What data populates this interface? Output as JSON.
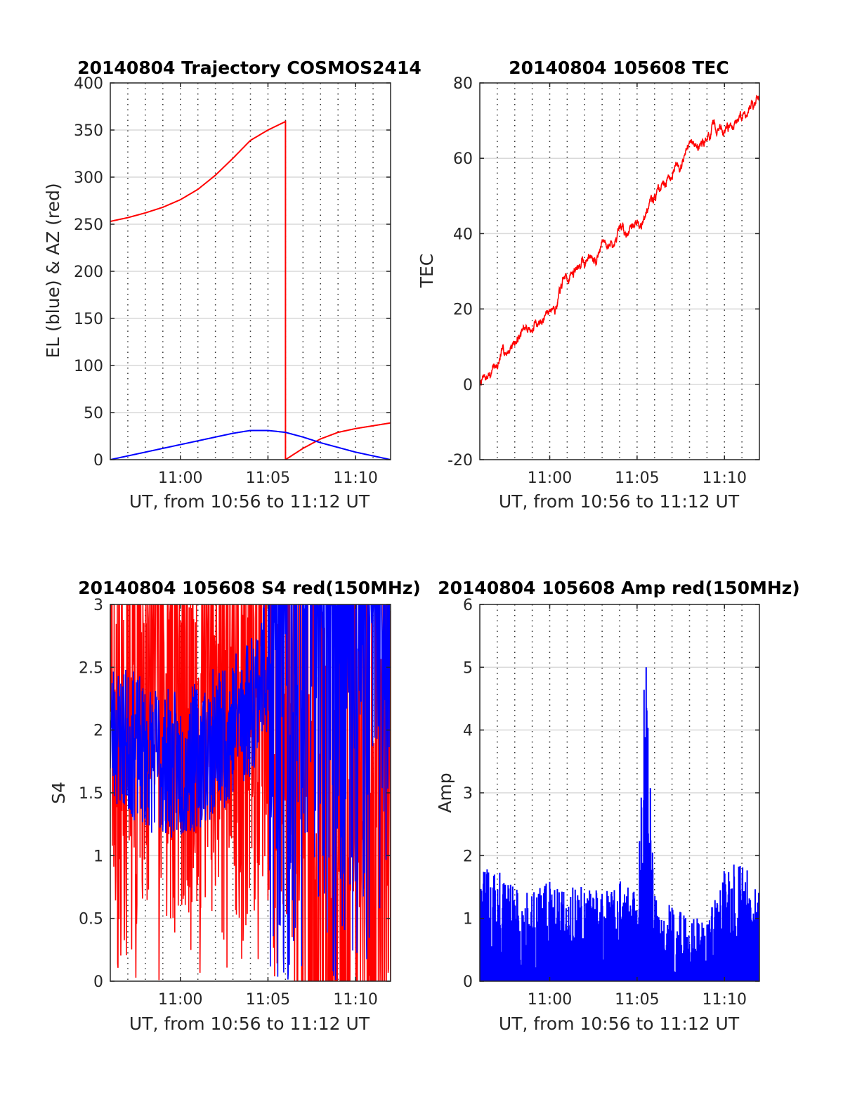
{
  "figure": {
    "colors": {
      "red": "#ff0000",
      "blue": "#0000ff",
      "axis": "#262626",
      "grid": "#262626"
    }
  },
  "chart_data": [
    {
      "id": "trajectory",
      "type": "line",
      "title": "20140804 Trajectory COSMOS2414",
      "xlabel": "UT, from 10:56 to 11:12 UT",
      "ylabel": "EL (blue) & AZ (red)",
      "xlim": [
        "10:56",
        "11:12"
      ],
      "ylim": [
        0,
        400
      ],
      "yticks": [
        0,
        50,
        100,
        150,
        200,
        250,
        300,
        350,
        400
      ],
      "xticks": [
        "11:00",
        "11:05",
        "11:10"
      ],
      "grid": true,
      "series": [
        {
          "color": "#ff0000",
          "x": [
            "10:56",
            "10:57",
            "10:58",
            "10:59",
            "11:00",
            "11:01",
            "11:02",
            "11:03",
            "11:04",
            "11:05",
            "11:06"
          ],
          "values": [
            253,
            257,
            262,
            268,
            276,
            287,
            302,
            320,
            339,
            350,
            359
          ]
        },
        {
          "color": "#ff0000",
          "x": [
            "11:06",
            "11:07",
            "11:08",
            "11:09",
            "11:10",
            "11:11",
            "11:12"
          ],
          "values": [
            0,
            12,
            22,
            29,
            33,
            36,
            39
          ]
        },
        {
          "color": "#0000ff",
          "x": [
            "10:56",
            "10:57",
            "10:58",
            "10:59",
            "11:00",
            "11:01",
            "11:02",
            "11:03",
            "11:04",
            "11:05",
            "11:06",
            "11:07",
            "11:08",
            "11:09",
            "11:10",
            "11:11",
            "11:12"
          ],
          "values": [
            0,
            4,
            8,
            12,
            16,
            20,
            24,
            28,
            31,
            31,
            29,
            24,
            18,
            13,
            8,
            4,
            0
          ]
        }
      ]
    },
    {
      "id": "tec",
      "type": "line",
      "title": "20140804 105608 TEC",
      "xlabel": "UT, from 10:56 to 11:12 UT",
      "ylabel": "TEC",
      "xlim": [
        "10:56",
        "11:12"
      ],
      "ylim": [
        -20,
        80
      ],
      "yticks": [
        -20,
        0,
        20,
        40,
        60,
        80
      ],
      "xticks": [
        "11:00",
        "11:05",
        "11:10"
      ],
      "grid": true,
      "series": [
        {
          "color": "#ff0000",
          "x": [
            "10:56",
            "10:57",
            "10:58",
            "10:59",
            "11:00",
            "11:01",
            "11:02",
            "11:03",
            "11:04",
            "11:05",
            "11:06",
            "11:07",
            "11:08",
            "11:09",
            "11:10",
            "11:11",
            "11:12"
          ],
          "values": [
            0,
            5,
            12,
            15,
            20,
            28,
            33,
            38,
            38,
            44,
            50,
            58,
            62,
            66,
            68,
            72,
            76
          ]
        }
      ]
    },
    {
      "id": "s4",
      "type": "line",
      "title": "20140804 105608 S4 red(150MHz)",
      "xlabel": "UT, from 10:56 to 11:12 UT",
      "ylabel": "S4",
      "xlim": [
        "10:56",
        "11:12"
      ],
      "ylim": [
        0,
        3
      ],
      "yticks": [
        0,
        0.5,
        1,
        1.5,
        2,
        2.5,
        3
      ],
      "xticks": [
        "11:00",
        "11:05",
        "11:10"
      ],
      "grid": true,
      "series": [
        {
          "color": "#ff0000",
          "x": [
            "10:56",
            "10:58",
            "11:00",
            "11:02",
            "11:04",
            "11:06",
            "11:08",
            "11:10",
            "11:12"
          ],
          "values": [
            3,
            3,
            3,
            3,
            3,
            3,
            3,
            3,
            3
          ]
        },
        {
          "color": "#0000ff",
          "x": [
            "10:56",
            "10:58",
            "11:00",
            "11:02",
            "11:04",
            "11:06",
            "11:08",
            "11:10",
            "11:12"
          ],
          "values": [
            2.0,
            1.8,
            1.7,
            1.9,
            2.2,
            3,
            3,
            3,
            3
          ]
        }
      ]
    },
    {
      "id": "amp",
      "type": "bar",
      "title": "20140804 105608 Amp red(150MHz)",
      "xlabel": "UT, from 10:56 to 11:12 UT",
      "ylabel": "Amp",
      "xlim": [
        "10:56",
        "11:12"
      ],
      "ylim": [
        0,
        6
      ],
      "yticks": [
        0,
        1,
        2,
        3,
        4,
        5,
        6
      ],
      "xticks": [
        "11:00",
        "11:05",
        "11:10"
      ],
      "grid": true,
      "series": [
        {
          "color": "#0000ff",
          "x": [
            "10:57",
            "10:58",
            "10:59",
            "11:00",
            "11:01",
            "11:02",
            "11:03",
            "11:04",
            "11:05",
            "11:05:30",
            "11:06",
            "11:07",
            "11:08",
            "11:09",
            "11:10",
            "11:11",
            "11:12"
          ],
          "values": [
            1.8,
            1.5,
            1.4,
            1.6,
            1.6,
            1.5,
            1.5,
            1.6,
            1.5,
            5.15,
            1.4,
            1.2,
            1.0,
            1.1,
            1.8,
            1.95,
            1.4
          ]
        }
      ]
    }
  ]
}
